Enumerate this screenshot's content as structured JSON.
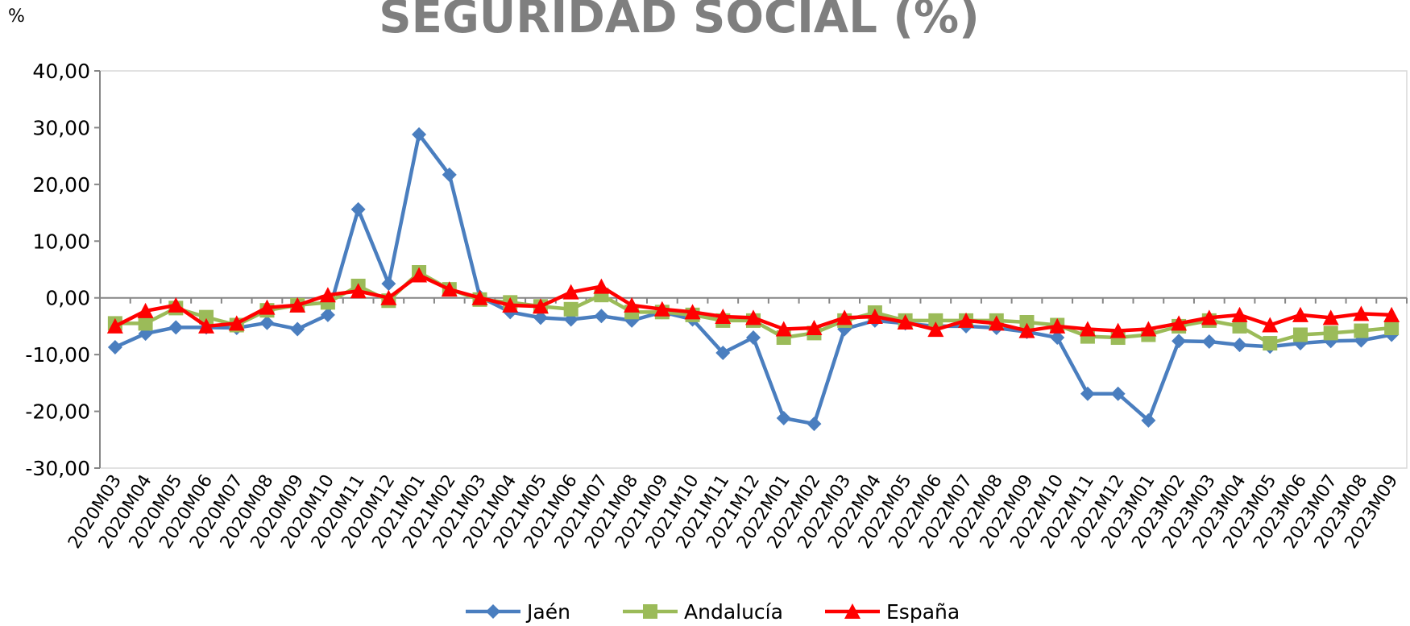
{
  "chart_data": {
    "type": "line",
    "title": "SEGURIDAD SOCIAL (%)",
    "y_label": "%",
    "categories": [
      "2020M03",
      "2020M04",
      "2020M05",
      "2020M06",
      "2020M07",
      "2020M08",
      "2020M09",
      "2020M10",
      "2020M11",
      "2020M12",
      "2021M01",
      "2021M02",
      "2021M03",
      "2021M04",
      "2021M05",
      "2021M06",
      "2021M07",
      "2021M08",
      "2021M09",
      "2021M10",
      "2021M11",
      "2021M12",
      "2022M01",
      "2022M02",
      "2022M03",
      "2022M04",
      "2022M05",
      "2022M06",
      "2022M07",
      "2022M08",
      "2022M09",
      "2022M10",
      "2022M11",
      "2022M12",
      "2023M01",
      "2023M02",
      "2023M03",
      "2023M04",
      "2023M05",
      "2023M06",
      "2023M07",
      "2023M08",
      "2023M09"
    ],
    "series": [
      {
        "name": "Jaén",
        "color": "#4a7ebf",
        "marker": "diamond",
        "values": [
          -8.7,
          -6.3,
          -5.2,
          -5.2,
          -5.3,
          -4.4,
          -5.5,
          -3.0,
          15.6,
          2.5,
          28.8,
          21.7,
          0.2,
          -2.5,
          -3.5,
          -3.8,
          -3.2,
          -4.0,
          -2.5,
          -3.8,
          -9.7,
          -7.0,
          -21.2,
          -22.2,
          -5.5,
          -4.0,
          -4.5,
          -5.0,
          -5.0,
          -5.3,
          -6.0,
          -7.0,
          -16.9,
          -16.9,
          -21.6,
          -7.6,
          -7.7,
          -8.3,
          -8.6,
          -8.0,
          -7.6,
          -7.5,
          -6.5
        ]
      },
      {
        "name": "Andalucía",
        "color": "#9bbb59",
        "marker": "square",
        "values": [
          -4.5,
          -4.5,
          -1.8,
          -3.4,
          -4.8,
          -2.2,
          -1.3,
          -0.8,
          2.1,
          -0.5,
          4.5,
          1.5,
          -0.3,
          -0.8,
          -1.5,
          -2.0,
          0.5,
          -2.5,
          -2.5,
          -3.0,
          -4.0,
          -4.0,
          -7.0,
          -6.2,
          -4.0,
          -2.6,
          -4.0,
          -4.0,
          -4.0,
          -4.0,
          -4.3,
          -4.8,
          -6.8,
          -7.0,
          -6.5,
          -5.0,
          -4.0,
          -5.0,
          -8.0,
          -6.5,
          -6.2,
          -5.8,
          -5.3
        ]
      },
      {
        "name": "España",
        "color": "#ff0000",
        "marker": "triangle",
        "values": [
          -5.0,
          -2.3,
          -1.3,
          -5.0,
          -4.5,
          -1.7,
          -1.3,
          0.5,
          1.2,
          0.0,
          4.0,
          1.5,
          0.0,
          -1.3,
          -1.5,
          1.0,
          2.0,
          -1.3,
          -2.0,
          -2.5,
          -3.3,
          -3.5,
          -5.5,
          -5.3,
          -3.5,
          -3.3,
          -4.3,
          -5.6,
          -4.0,
          -4.5,
          -5.8,
          -5.0,
          -5.5,
          -5.8,
          -5.5,
          -4.5,
          -3.5,
          -3.0,
          -4.8,
          -3.0,
          -3.5,
          -2.8,
          -3.0
        ]
      }
    ],
    "ylim": [
      -30,
      40
    ],
    "yticks": [
      {
        "value": -30,
        "label": "-30,00"
      },
      {
        "value": -20,
        "label": "-20,00"
      },
      {
        "value": -10,
        "label": "-10,00"
      },
      {
        "value": 0,
        "label": "0,00"
      },
      {
        "value": 10,
        "label": "10,00"
      },
      {
        "value": 20,
        "label": "20,00"
      },
      {
        "value": 30,
        "label": "30,00"
      },
      {
        "value": 40,
        "label": "40,00"
      }
    ],
    "legend": "bottom"
  }
}
